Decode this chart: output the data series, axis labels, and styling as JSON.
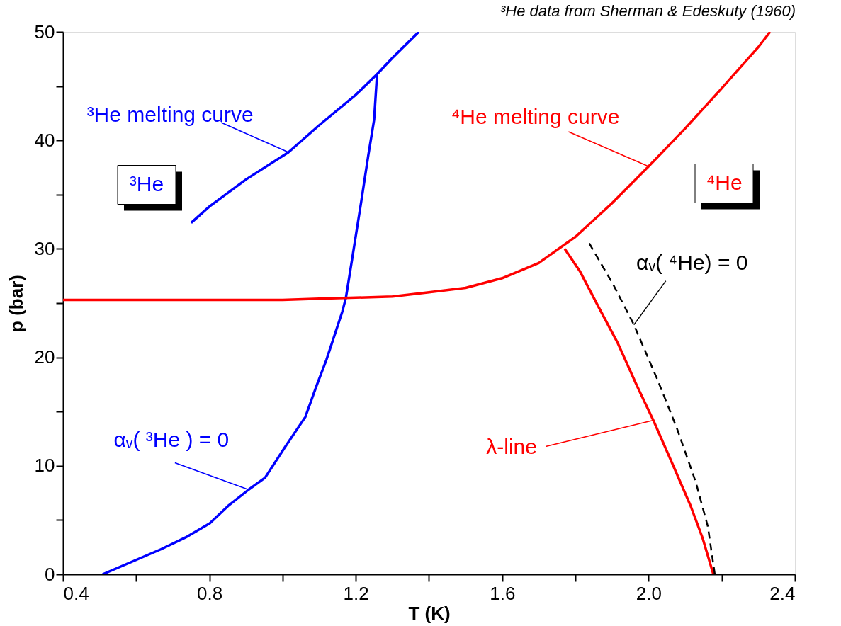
{
  "chart_data": {
    "type": "line",
    "xlabel": "T (K)",
    "ylabel": "p (bar)",
    "xlim": [
      0.4,
      2.4
    ],
    "ylim": [
      0,
      50
    ],
    "xticks": [
      0.4,
      {
        "value": 0.6,
        "label": null
      },
      0.8,
      {
        "value": 1.0,
        "label": null
      },
      1.2,
      {
        "value": 1.4,
        "label": null
      },
      1.6,
      {
        "value": 1.8,
        "label": null
      },
      {
        "value": 2.0,
        "label": "2.0"
      },
      {
        "value": 2.2,
        "label": null
      },
      2.4
    ],
    "yticks": [
      0,
      {
        "value": 5,
        "label": null
      },
      10,
      {
        "value": 15,
        "label": null
      },
      20,
      {
        "value": 25,
        "label": null
      },
      30,
      {
        "value": 35,
        "label": null
      },
      40,
      {
        "value": 45,
        "label": null
      },
      50
    ],
    "grid": false,
    "marker": "none",
    "series": [
      {
        "color": "#0000ff",
        "line_style": "solid",
        "x": [
          0.75,
          0.8,
          0.9,
          1.016,
          1.1,
          1.2,
          1.258,
          1.3,
          1.372
        ],
        "values": [
          32.4,
          33.9,
          36.4,
          38.9,
          41.4,
          44.2,
          46.1,
          47.6,
          50
        ]
      },
      {
        "color": "#0000ff",
        "line_style": "solid",
        "x": [
          0.508,
          0.667,
          0.735,
          0.801,
          0.851,
          0.907,
          0.952,
          1.006,
          1.062,
          1.093,
          1.12,
          1.163,
          1.173,
          1.192,
          1.215,
          1.234,
          1.25,
          1.258
        ],
        "values": [
          0,
          2.3,
          3.4,
          4.7,
          6.3,
          7.8,
          8.9,
          11.7,
          14.5,
          17.4,
          19.8,
          24.2,
          25.5,
          29.5,
          34.4,
          38.6,
          41.9,
          46.1
        ]
      },
      {
        "color": "#ff0000",
        "line_style": "solid",
        "x": [
          0.4,
          0.8,
          1.0,
          1.1,
          1.2,
          1.3,
          1.4,
          1.5,
          1.6,
          1.7,
          1.8,
          1.9,
          2.0,
          2.1,
          2.2,
          2.3,
          2.332
        ],
        "values": [
          25.3,
          25.3,
          25.3,
          25.4,
          25.5,
          25.6,
          26.0,
          26.4,
          27.3,
          28.7,
          31.1,
          34.2,
          37.6,
          41.1,
          44.8,
          48.6,
          50
        ]
      },
      {
        "color": "#ff0000",
        "line_style": "solid",
        "x": [
          1.771,
          1.813,
          1.864,
          1.916,
          1.968,
          2.013,
          2.065,
          2.115,
          2.148,
          2.177
        ],
        "values": [
          30.0,
          27.9,
          24.6,
          21.3,
          17.4,
          14.2,
          10.2,
          6.3,
          3.3,
          0
        ]
      },
      {
        "color": "#000000",
        "line_style": "dashed",
        "x": [
          1.838,
          1.902,
          1.96,
          2.026,
          2.077,
          2.129,
          2.162,
          2.181
        ],
        "values": [
          30.5,
          26.8,
          23.0,
          17.8,
          13.5,
          8.5,
          4.4,
          0
        ]
      }
    ],
    "annotations": [
      "³He data from Sherman & Edeskuty (1960)",
      {
        "text": "³He melting curve",
        "x": 1.016,
        "y": 38.9
      },
      {
        "text": "⁴He melting curve",
        "x": 2.0,
        "y": 37.6
      },
      {
        "text": "αᵥ( ³He ) = 0",
        "x": 0.907,
        "y": 7.8
      },
      {
        "text": "αᵥ( ⁴He) = 0",
        "x": 1.96,
        "y": 23.0
      },
      {
        "text": "λ-line",
        "x": 2.013,
        "y": 14.2
      },
      "³He",
      "⁴He"
    ]
  }
}
